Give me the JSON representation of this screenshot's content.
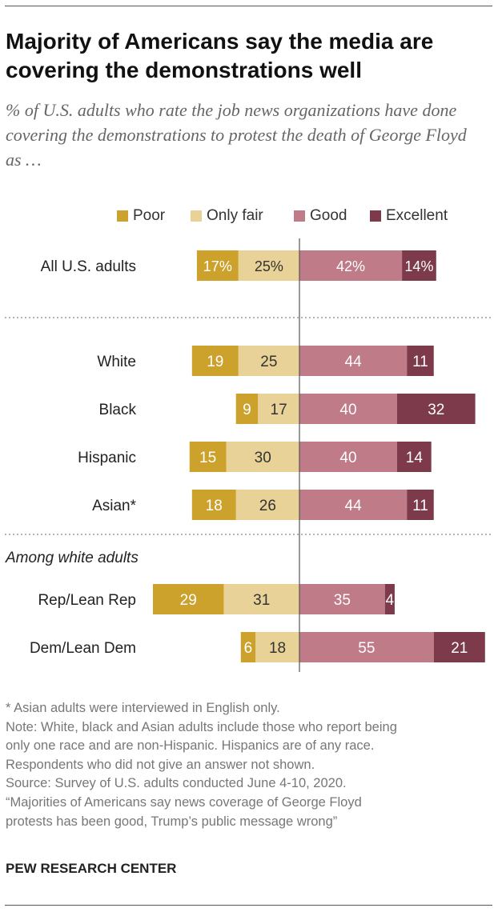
{
  "title": "Majority of Americans say the media are covering the demonstrations well",
  "subtitle": "% of U.S. adults who rate the job news organizations have done covering the demonstrations to protest the death of George Floyd as …",
  "colors": {
    "poor": "#cca22d",
    "only_fair": "#e8d297",
    "good": "#bf7b88",
    "excellent": "#7d3a4b",
    "label_dark": "#333333",
    "label_light": "#ffffff"
  },
  "chart_data": {
    "type": "bar",
    "orientation": "horizontal",
    "stacking": "diverging",
    "legend": [
      {
        "key": "poor",
        "label": "Poor"
      },
      {
        "key": "only_fair",
        "label": "Only fair"
      },
      {
        "key": "good",
        "label": "Good"
      },
      {
        "key": "excellent",
        "label": "Excellent"
      }
    ],
    "section_label": "Among white adults",
    "categories": [
      "All U.S. adults",
      "White",
      "Black",
      "Hispanic",
      "Asian*",
      "Rep/Lean Rep",
      "Dem/Lean Dem"
    ],
    "value_labels": [
      [
        "17%",
        "25%",
        "42%",
        "14%"
      ],
      [
        "19",
        "25",
        "44",
        "11"
      ],
      [
        "9",
        "17",
        "40",
        "32"
      ],
      [
        "15",
        "30",
        "40",
        "14"
      ],
      [
        "18",
        "26",
        "44",
        "11"
      ],
      [
        "29",
        "31",
        "35",
        "4"
      ],
      [
        "6",
        "18",
        "55",
        "21"
      ]
    ],
    "series": [
      {
        "name": "Poor",
        "values": [
          17,
          19,
          9,
          15,
          18,
          29,
          6
        ]
      },
      {
        "name": "Only fair",
        "values": [
          25,
          25,
          17,
          30,
          26,
          31,
          18
        ]
      },
      {
        "name": "Good",
        "values": [
          42,
          44,
          40,
          40,
          44,
          35,
          55
        ]
      },
      {
        "name": "Excellent",
        "values": [
          14,
          11,
          32,
          14,
          11,
          4,
          21
        ]
      }
    ]
  },
  "notes": [
    "* Asian adults were interviewed in English only.",
    "Note: White, black and Asian adults include those who report being",
    "only one race and are non-Hispanic. Hispanics are of any race.",
    "Respondents who did not give an answer not shown.",
    "Source: Survey of U.S. adults conducted June 4-10, 2020.",
    "“Majorities of Americans say news coverage of George Floyd",
    "protests has been good, Trump’s public message wrong”"
  ],
  "brand": "PEW RESEARCH CENTER"
}
